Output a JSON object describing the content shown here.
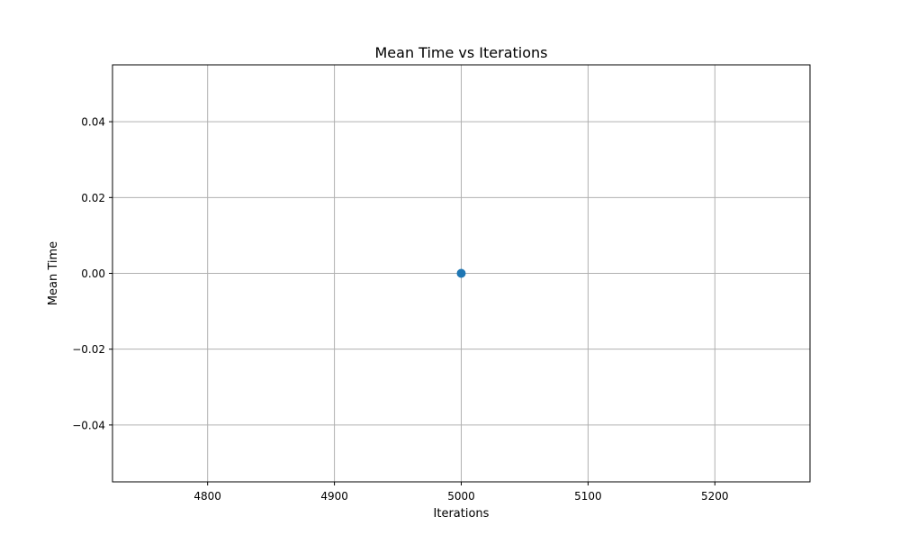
{
  "chart_data": {
    "type": "scatter",
    "title": "Mean Time vs Iterations",
    "xlabel": "Iterations",
    "ylabel": "Mean Time",
    "xlim": [
      4725,
      5275
    ],
    "ylim": [
      -0.055,
      0.055
    ],
    "xticks": [
      4800,
      4900,
      5000,
      5100,
      5200
    ],
    "xtick_labels": [
      "4800",
      "4900",
      "5000",
      "5100",
      "5200"
    ],
    "yticks": [
      -0.04,
      -0.02,
      0.0,
      0.02,
      0.04
    ],
    "ytick_labels": [
      "−0.04",
      "−0.02",
      "0.00",
      "0.02",
      "0.04"
    ],
    "grid": true,
    "series": [
      {
        "color": "#1f77b4",
        "marker": "circle",
        "x": [
          5000
        ],
        "y": [
          0.0
        ]
      }
    ]
  }
}
